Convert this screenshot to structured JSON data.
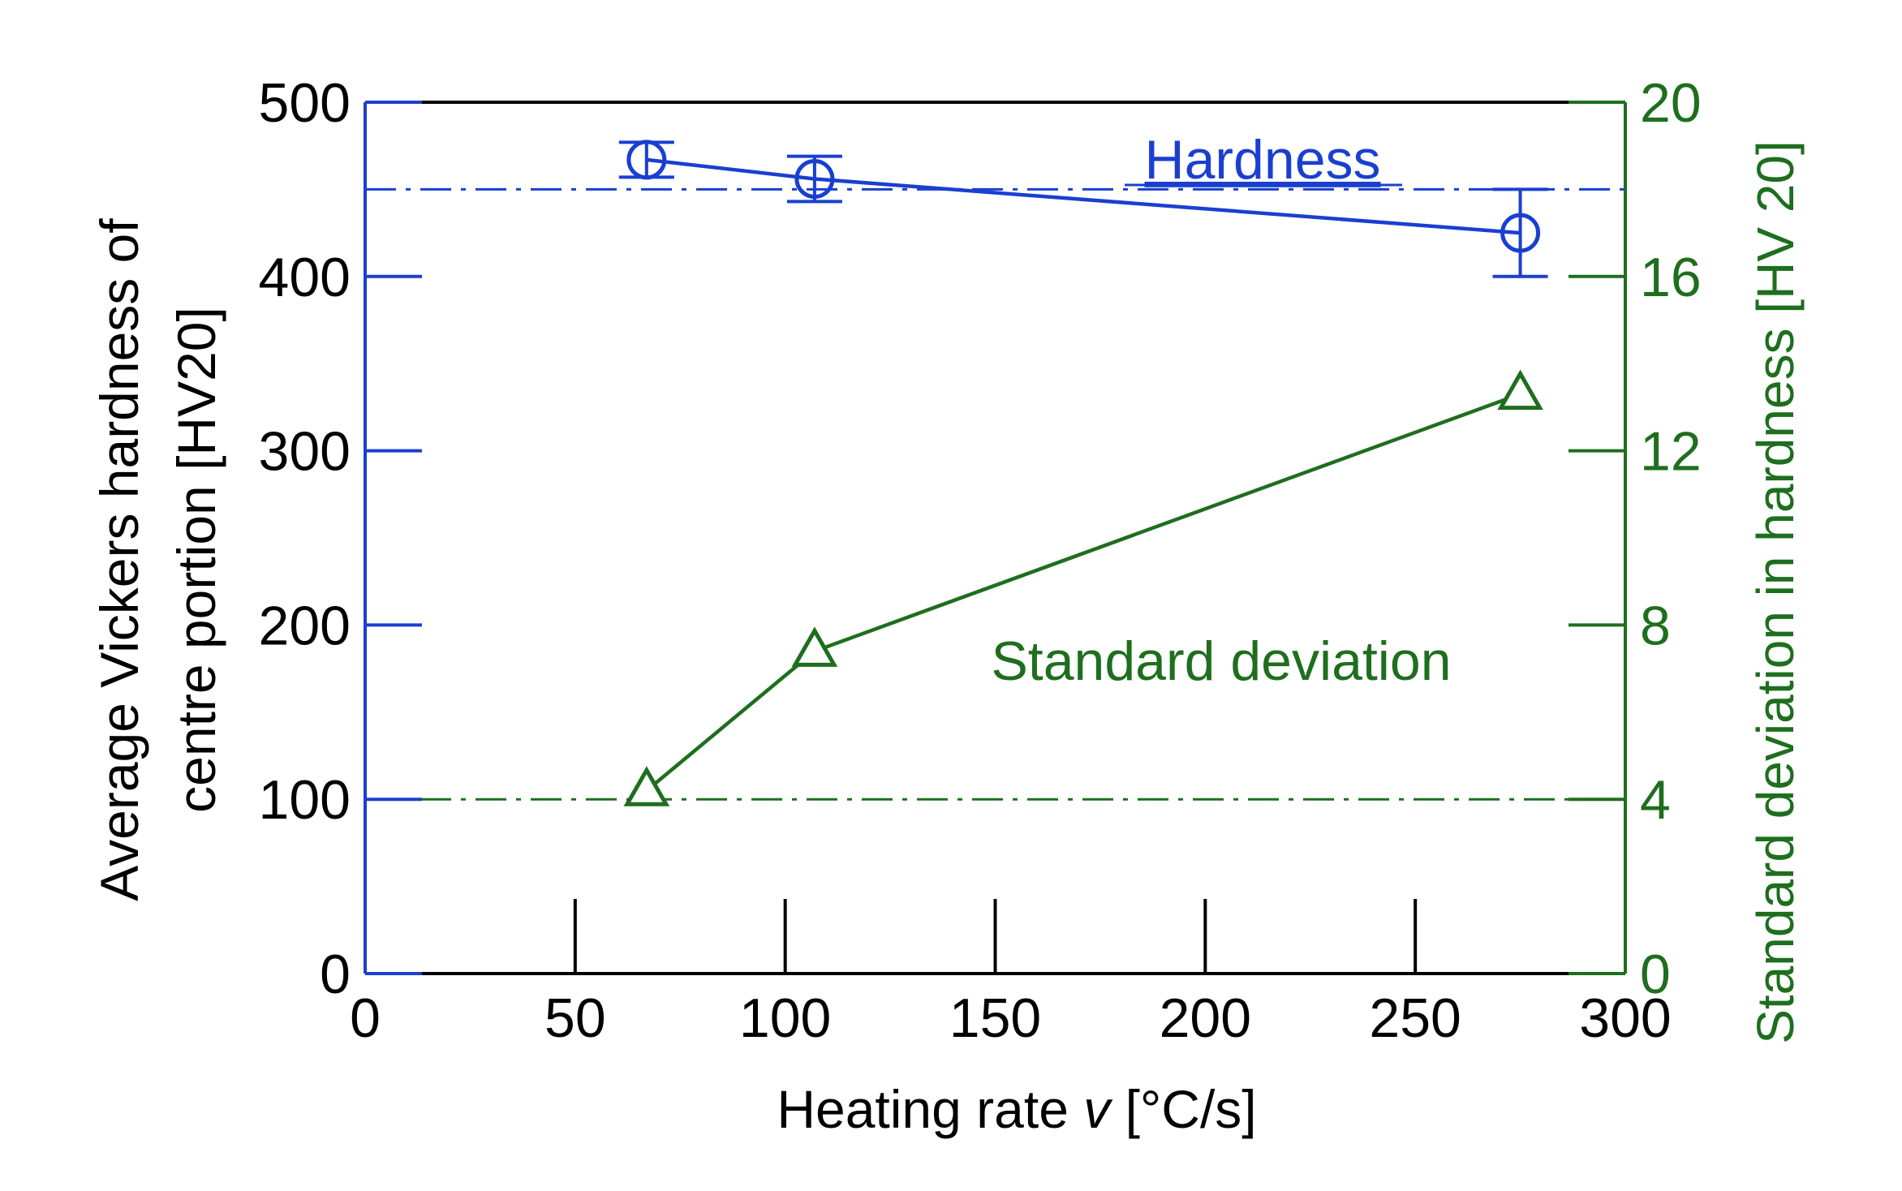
{
  "chart_data": {
    "type": "line",
    "xlabel_prefix": "Heating rate ",
    "xlabel_var": "v",
    "xlabel_suffix": " [°C/s]",
    "ylabel_left_line1": "Average Vickers hardness of",
    "ylabel_left_line2": "centre portion [HV20]",
    "ylabel_right": "Standard deviation in hardness [HV 20]",
    "xlim": [
      0,
      300
    ],
    "ylim_left": [
      0,
      500
    ],
    "ylim_right": [
      0,
      20
    ],
    "x_ticks": [
      0,
      50,
      100,
      150,
      200,
      250,
      300
    ],
    "x_tick_labels": [
      "0",
      "50",
      "100",
      "150",
      "200",
      "250",
      "300"
    ],
    "y_left_ticks": [
      0,
      100,
      200,
      300,
      400,
      500
    ],
    "y_left_tick_labels": [
      "0",
      "100",
      "200",
      "300",
      "400",
      "500"
    ],
    "y_right_ticks": [
      0,
      4,
      8,
      12,
      16,
      20
    ],
    "y_right_tick_labels": [
      "0",
      "4",
      "8",
      "12",
      "16",
      "20"
    ],
    "grid": false,
    "reference_lines": [
      {
        "axis": "left",
        "value": 450,
        "color": "#1a3fd0",
        "style": "dash-dot"
      },
      {
        "axis": "right",
        "value": 4,
        "color": "#1e6e1e",
        "style": "dash-dot"
      }
    ],
    "series": [
      {
        "name": "Hardness",
        "axis": "left",
        "color": "#1a3fd0",
        "marker": "circle",
        "x": [
          67,
          107,
          275
        ],
        "y": [
          467,
          456,
          425
        ],
        "y_err": [
          10,
          13,
          25
        ]
      },
      {
        "name": "Standard deviation",
        "axis": "right",
        "color": "#1e6e1e",
        "marker": "triangle",
        "x": [
          67,
          107,
          275
        ],
        "y": [
          4.2,
          7.4,
          13.3
        ]
      }
    ]
  }
}
